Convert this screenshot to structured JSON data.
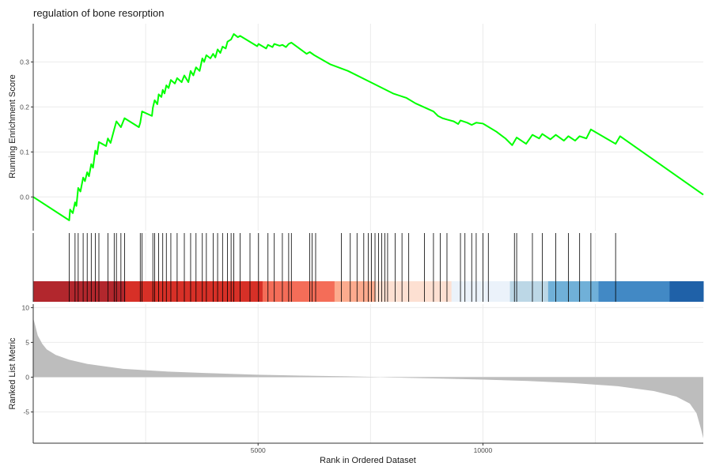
{
  "chart_data": {
    "type": "line",
    "title": "regulation of bone resorption",
    "x_axis": {
      "label": "Rank in Ordered Dataset",
      "ticks": [
        5000,
        10000
      ],
      "range": [
        0,
        14900
      ],
      "grid": true
    },
    "panels": [
      {
        "name": "running_score",
        "ylabel": "Running Enrichment Score",
        "ylim": [
          -0.075,
          0.385
        ],
        "yticks": [
          0.0,
          0.1,
          0.2,
          0.3
        ],
        "line_color": "#00FF00",
        "points": [
          [
            0,
            0.0
          ],
          [
            800,
            -0.052
          ],
          [
            820,
            -0.028
          ],
          [
            880,
            -0.036
          ],
          [
            930,
            -0.012
          ],
          [
            960,
            -0.02
          ],
          [
            1000,
            0.02
          ],
          [
            1050,
            0.012
          ],
          [
            1110,
            0.043
          ],
          [
            1150,
            0.035
          ],
          [
            1200,
            0.055
          ],
          [
            1240,
            0.046
          ],
          [
            1290,
            0.073
          ],
          [
            1330,
            0.065
          ],
          [
            1380,
            0.103
          ],
          [
            1420,
            0.095
          ],
          [
            1460,
            0.122
          ],
          [
            1620,
            0.113
          ],
          [
            1660,
            0.13
          ],
          [
            1720,
            0.12
          ],
          [
            1800,
            0.15
          ],
          [
            1850,
            0.168
          ],
          [
            1950,
            0.155
          ],
          [
            2030,
            0.175
          ],
          [
            2350,
            0.155
          ],
          [
            2380,
            0.165
          ],
          [
            2420,
            0.19
          ],
          [
            2640,
            0.18
          ],
          [
            2660,
            0.198
          ],
          [
            2700,
            0.215
          ],
          [
            2760,
            0.206
          ],
          [
            2790,
            0.228
          ],
          [
            2850,
            0.222
          ],
          [
            2880,
            0.238
          ],
          [
            2920,
            0.23
          ],
          [
            2960,
            0.248
          ],
          [
            3010,
            0.242
          ],
          [
            3060,
            0.26
          ],
          [
            3150,
            0.252
          ],
          [
            3200,
            0.264
          ],
          [
            3300,
            0.255
          ],
          [
            3360,
            0.27
          ],
          [
            3450,
            0.255
          ],
          [
            3500,
            0.28
          ],
          [
            3560,
            0.27
          ],
          [
            3620,
            0.288
          ],
          [
            3700,
            0.28
          ],
          [
            3760,
            0.308
          ],
          [
            3800,
            0.3
          ],
          [
            3850,
            0.315
          ],
          [
            3940,
            0.308
          ],
          [
            4000,
            0.318
          ],
          [
            4050,
            0.31
          ],
          [
            4100,
            0.328
          ],
          [
            4160,
            0.32
          ],
          [
            4210,
            0.334
          ],
          [
            4280,
            0.33
          ],
          [
            4320,
            0.345
          ],
          [
            4400,
            0.35
          ],
          [
            4460,
            0.362
          ],
          [
            4550,
            0.355
          ],
          [
            4600,
            0.358
          ],
          [
            4980,
            0.335
          ],
          [
            5010,
            0.34
          ],
          [
            5180,
            0.33
          ],
          [
            5220,
            0.338
          ],
          [
            5320,
            0.333
          ],
          [
            5360,
            0.34
          ],
          [
            5480,
            0.336
          ],
          [
            5540,
            0.338
          ],
          [
            5620,
            0.333
          ],
          [
            5680,
            0.34
          ],
          [
            5740,
            0.343
          ],
          [
            6080,
            0.318
          ],
          [
            6150,
            0.322
          ],
          [
            6250,
            0.315
          ],
          [
            6600,
            0.295
          ],
          [
            7000,
            0.28
          ],
          [
            7500,
            0.255
          ],
          [
            8000,
            0.23
          ],
          [
            8300,
            0.22
          ],
          [
            8500,
            0.208
          ],
          [
            8900,
            0.19
          ],
          [
            9000,
            0.18
          ],
          [
            9100,
            0.175
          ],
          [
            9200,
            0.172
          ],
          [
            9350,
            0.168
          ],
          [
            9450,
            0.162
          ],
          [
            9500,
            0.17
          ],
          [
            9650,
            0.165
          ],
          [
            9750,
            0.16
          ],
          [
            9850,
            0.165
          ],
          [
            10000,
            0.163
          ],
          [
            10050,
            0.16
          ],
          [
            10300,
            0.145
          ],
          [
            10500,
            0.13
          ],
          [
            10650,
            0.115
          ],
          [
            10750,
            0.132
          ],
          [
            10960,
            0.118
          ],
          [
            11100,
            0.138
          ],
          [
            11250,
            0.13
          ],
          [
            11320,
            0.14
          ],
          [
            11500,
            0.128
          ],
          [
            11620,
            0.138
          ],
          [
            11800,
            0.125
          ],
          [
            11900,
            0.135
          ],
          [
            12050,
            0.125
          ],
          [
            12150,
            0.135
          ],
          [
            12300,
            0.13
          ],
          [
            12400,
            0.15
          ],
          [
            12950,
            0.118
          ],
          [
            13050,
            0.135
          ],
          [
            14900,
            0.005
          ]
        ]
      },
      {
        "name": "gene_hits",
        "hit_ranks": [
          800,
          930,
          1000,
          1110,
          1200,
          1290,
          1380,
          1460,
          1660,
          1800,
          1850,
          1950,
          2030,
          2380,
          2420,
          2660,
          2700,
          2790,
          2880,
          2960,
          3060,
          3200,
          3360,
          3500,
          3620,
          3760,
          3850,
          4000,
          4100,
          4210,
          4320,
          4400,
          4460,
          4600,
          4820,
          5010,
          5220,
          5360,
          5540,
          5680,
          5740,
          6150,
          6200,
          6280,
          6850,
          7050,
          7200,
          7350,
          7450,
          7520,
          7600,
          7680,
          7750,
          7820,
          7880,
          8050,
          8200,
          8350,
          8700,
          8900,
          9050,
          9200,
          9500,
          9600,
          9750,
          9850,
          10000,
          10120,
          10700,
          10750,
          11100,
          11320,
          11620,
          11900,
          12150,
          12400,
          12950
        ]
      },
      {
        "name": "ranked_metric",
        "ylabel": "Ranked List Metric",
        "ylim": [
          -9.5,
          10.5
        ],
        "yticks": [
          -5,
          0,
          5,
          10
        ],
        "fill_color": "#bdbdbd",
        "points": [
          [
            0,
            8.5
          ],
          [
            50,
            7.3
          ],
          [
            100,
            6.0
          ],
          [
            200,
            4.8
          ],
          [
            300,
            4.0
          ],
          [
            500,
            3.2
          ],
          [
            800,
            2.5
          ],
          [
            1200,
            1.9
          ],
          [
            2000,
            1.2
          ],
          [
            3000,
            0.8
          ],
          [
            4000,
            0.55
          ],
          [
            5000,
            0.35
          ],
          [
            6000,
            0.22
          ],
          [
            7000,
            0.12
          ],
          [
            7500,
            0.05
          ],
          [
            8000,
            -0.05
          ],
          [
            9000,
            -0.2
          ],
          [
            10000,
            -0.35
          ],
          [
            11000,
            -0.55
          ],
          [
            12000,
            -0.85
          ],
          [
            13000,
            -1.3
          ],
          [
            13800,
            -2.0
          ],
          [
            14300,
            -2.8
          ],
          [
            14600,
            -3.8
          ],
          [
            14750,
            -5.2
          ],
          [
            14850,
            -7.5
          ],
          [
            14900,
            -8.8
          ]
        ]
      }
    ],
    "color_band": [
      {
        "from": 0,
        "to": 2050,
        "color": "#B2272D"
      },
      {
        "from": 2050,
        "to": 5100,
        "color": "#D73027"
      },
      {
        "from": 5100,
        "to": 6700,
        "color": "#F46D58"
      },
      {
        "from": 6700,
        "to": 7600,
        "color": "#FCAB8E"
      },
      {
        "from": 7600,
        "to": 9300,
        "color": "#FDE0D2"
      },
      {
        "from": 9300,
        "to": 10600,
        "color": "#EBF2FA"
      },
      {
        "from": 10600,
        "to": 11450,
        "color": "#BCD7E6"
      },
      {
        "from": 11450,
        "to": 12570,
        "color": "#70B0D8"
      },
      {
        "from": 12570,
        "to": 14150,
        "color": "#4289C5"
      },
      {
        "from": 14150,
        "to": 14900,
        "color": "#1F61A8"
      }
    ]
  }
}
